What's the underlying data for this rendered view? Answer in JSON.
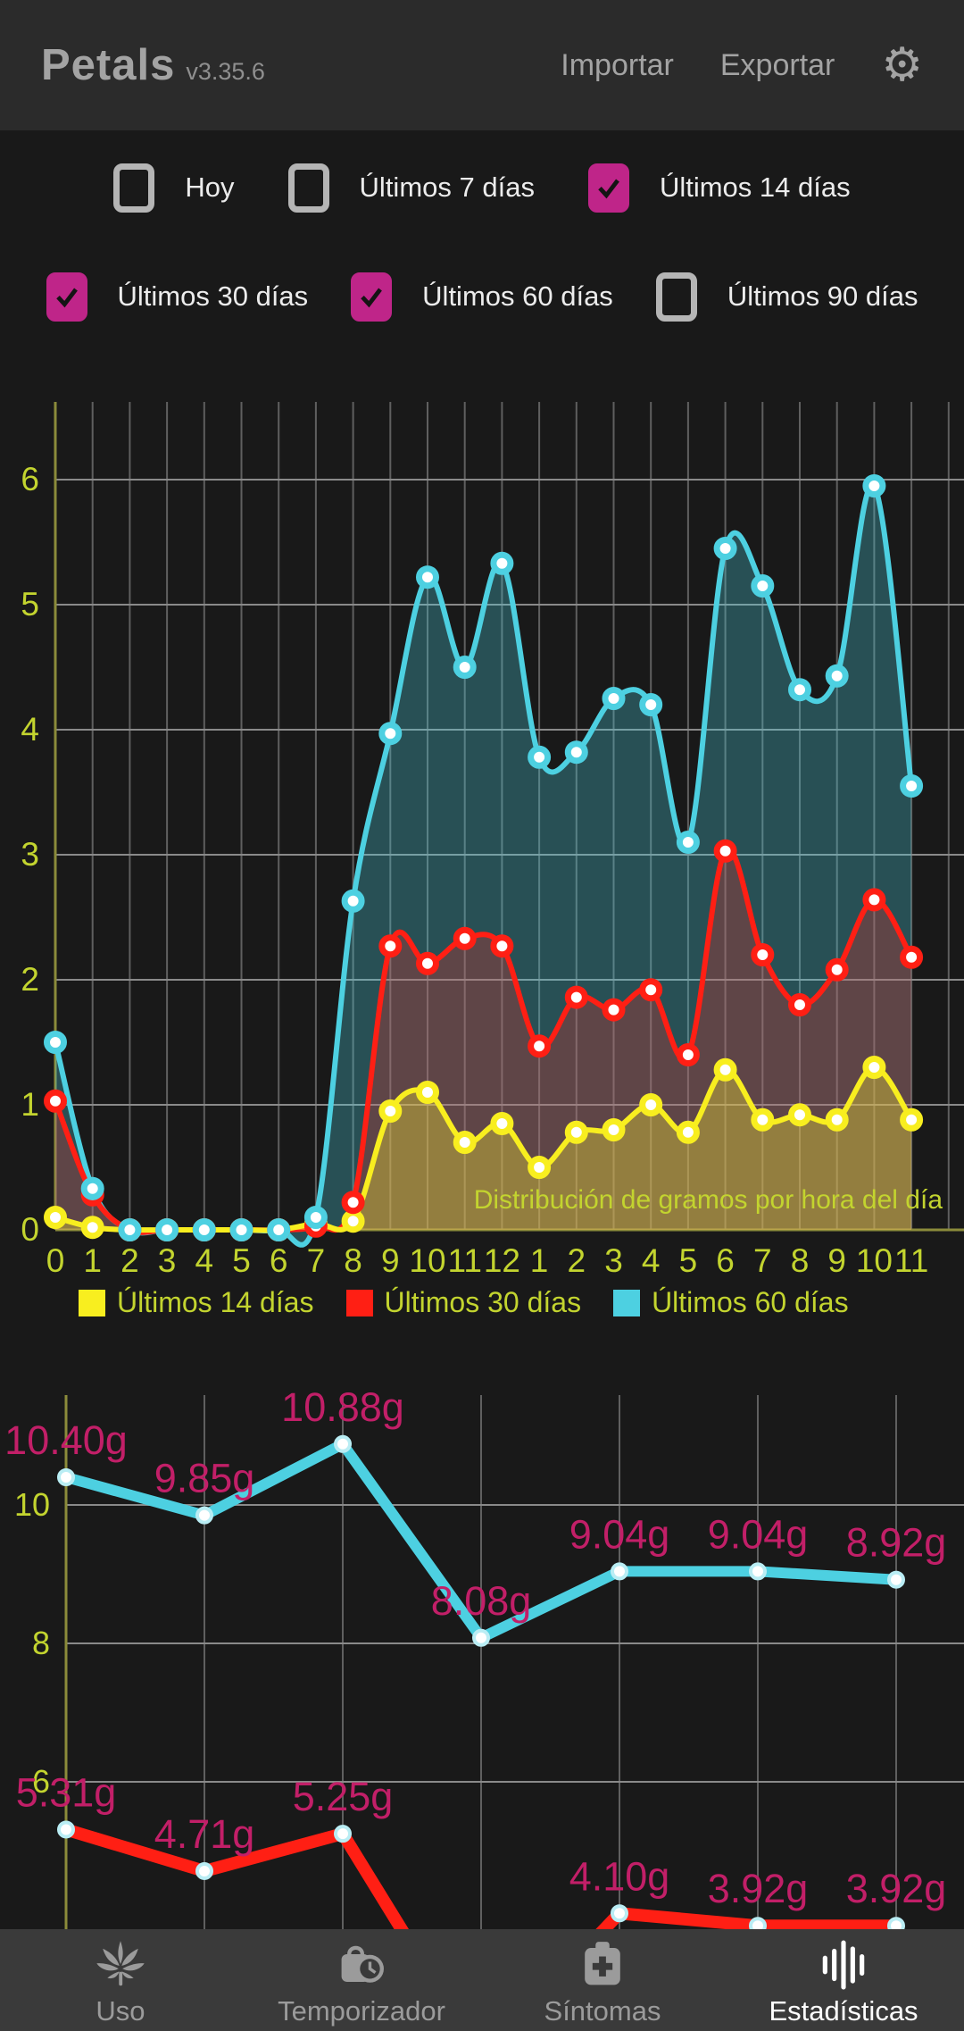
{
  "header": {
    "app_name": "Petals",
    "version": "v3.35.6",
    "import_label": "Importar",
    "export_label": "Exportar"
  },
  "filters": {
    "row1": [
      {
        "label": "Hoy",
        "checked": false
      },
      {
        "label": "Últimos 7 días",
        "checked": false
      },
      {
        "label": "Últimos 14 días",
        "checked": true
      }
    ],
    "row2": [
      {
        "label": "Últimos 30 días",
        "checked": true
      },
      {
        "label": "Últimos 60 días",
        "checked": true
      },
      {
        "label": "Últimos 90 días",
        "checked": false
      }
    ]
  },
  "colors": {
    "background": "#191919",
    "header_bg": "#2b2b2b",
    "nav_bg": "#3a3a3a",
    "checkbox_checked": "#bf2589",
    "checkbox_border": "#b5b5b5",
    "axis_text": "#c3d42f",
    "grid_vertical": "#5f5f5f",
    "grid_horizontal": "#8a8a8a",
    "axis_line": "#8b8b3a",
    "series_yellow": "#f8ee1f",
    "series_red": "#ff1f14",
    "series_cyan": "#4dd0e1",
    "value_label": "#c21f68",
    "marker_ring_light": "#b9edf4"
  },
  "chart_data": [
    {
      "type": "area",
      "title": "Distribución de gramos por hora del día",
      "x_labels": [
        "0",
        "1",
        "2",
        "3",
        "4",
        "5",
        "6",
        "7",
        "8",
        "9",
        "10",
        "11",
        "12",
        "1",
        "2",
        "3",
        "4",
        "5",
        "6",
        "7",
        "8",
        "9",
        "10",
        "11"
      ],
      "yticks": [
        0,
        1,
        2,
        3,
        4,
        5,
        6
      ],
      "ylim": [
        0,
        6.6
      ],
      "grid": true,
      "legend_position": "bottom",
      "series": [
        {
          "name": "Últimos 14 días",
          "color": "#f8ee1f",
          "values": [
            0.1,
            0.02,
            0,
            0,
            0,
            0,
            0,
            0.05,
            0.07,
            0.95,
            1.1,
            0.7,
            0.85,
            0.5,
            0.78,
            0.8,
            1.0,
            0.78,
            1.28,
            0.88,
            0.92,
            0.88,
            1.3,
            0.88
          ]
        },
        {
          "name": "Últimos 30 días",
          "color": "#ff1f14",
          "values": [
            1.03,
            0.28,
            0,
            0,
            0,
            0,
            0,
            0.03,
            0.22,
            2.27,
            2.13,
            2.33,
            2.27,
            1.47,
            1.86,
            1.76,
            1.92,
            1.4,
            3.03,
            2.2,
            1.8,
            2.08,
            2.64,
            2.18
          ]
        },
        {
          "name": "Últimos 60 días",
          "color": "#4dd0e1",
          "values": [
            1.5,
            0.33,
            0,
            0,
            0,
            0,
            0,
            0.1,
            2.63,
            3.97,
            5.22,
            4.5,
            5.33,
            3.78,
            3.82,
            4.25,
            4.2,
            3.1,
            5.45,
            5.15,
            4.32,
            4.43,
            5.95,
            3.55
          ]
        }
      ]
    },
    {
      "type": "line",
      "title": "",
      "yticks": [
        10,
        8,
        6
      ],
      "grid": true,
      "value_label_color": "#c21f68",
      "series": [
        {
          "name": "cyan-average-line",
          "color": "#4dd0e1",
          "values": [
            10.4,
            9.85,
            10.88,
            8.08,
            9.04,
            9.04,
            8.92
          ],
          "labels": [
            "10.40g",
            "9.85g",
            "10.88g",
            "8.08g",
            "9.04g",
            "9.04g",
            "8.92g"
          ]
        },
        {
          "name": "red-average-line",
          "color": "#ff1f14",
          "values": [
            5.31,
            4.71,
            5.25,
            2.0,
            4.1,
            3.92,
            3.92
          ],
          "labels": [
            "5.31g",
            "4.71g",
            "5.25g",
            "",
            "4.10g",
            "3.92g",
            "3.92g"
          ],
          "offscreen_point_index": 3
        }
      ]
    }
  ],
  "nav": {
    "items": [
      {
        "label": "Uso",
        "icon": "cannabis-leaf",
        "active": false
      },
      {
        "label": "Temporizador",
        "icon": "bag-clock",
        "active": false
      },
      {
        "label": "Síntomas",
        "icon": "first-aid-kit",
        "active": false
      },
      {
        "label": "Estadísticas",
        "icon": "equalizer",
        "active": true
      }
    ]
  }
}
